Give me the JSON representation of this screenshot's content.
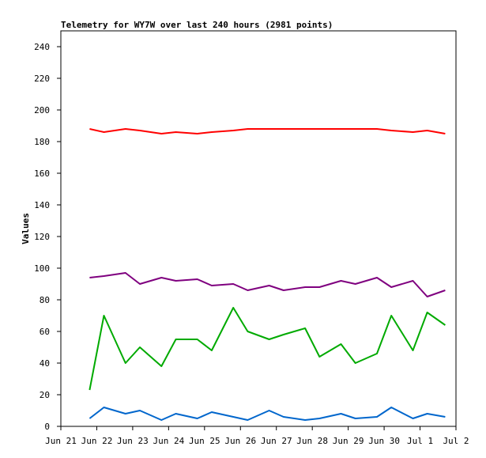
{
  "chart_data": {
    "type": "line",
    "title": "Telemetry for WY7W over last 240 hours (2981 points)",
    "xlabel": "",
    "ylabel": "Values",
    "xlim": [
      "Jun 21",
      "Jul 2"
    ],
    "ylim": [
      0,
      250
    ],
    "grid": false,
    "x_ticks": [
      "Jun 21",
      "Jun 22",
      "Jun 23",
      "Jun 24",
      "Jun 25",
      "Jun 26",
      "Jun 27",
      "Jun 28",
      "Jun 29",
      "Jun 30",
      "Jul 1",
      "Jul 2"
    ],
    "y_ticks": [
      0,
      20,
      40,
      60,
      80,
      100,
      120,
      140,
      160,
      180,
      200,
      220,
      240
    ],
    "x_day_offsets": [
      0.8,
      1.2,
      1.8,
      2.2,
      2.8,
      3.2,
      3.8,
      4.2,
      4.8,
      5.2,
      5.8,
      6.2,
      6.8,
      7.2,
      7.8,
      8.2,
      8.8,
      9.2,
      9.8,
      10.2,
      10.7
    ],
    "series": [
      {
        "color": "#ff0000",
        "values": [
          188,
          186,
          188,
          187,
          185,
          186,
          185,
          186,
          187,
          188,
          188,
          188,
          188,
          188,
          188,
          188,
          188,
          187,
          186,
          187,
          185
        ]
      },
      {
        "color": "#7f007f",
        "values": [
          94,
          95,
          97,
          90,
          94,
          92,
          93,
          89,
          90,
          86,
          89,
          86,
          88,
          88,
          92,
          90,
          94,
          88,
          92,
          82,
          86
        ]
      },
      {
        "color": "#00aa00",
        "values": [
          23,
          70,
          40,
          50,
          38,
          55,
          55,
          48,
          75,
          60,
          55,
          58,
          62,
          44,
          52,
          40,
          46,
          70,
          48,
          72,
          64
        ]
      },
      {
        "color": "#0066cc",
        "values": [
          5,
          12,
          8,
          10,
          4,
          8,
          5,
          9,
          6,
          4,
          10,
          6,
          4,
          5,
          8,
          5,
          6,
          12,
          5,
          8,
          6
        ]
      }
    ]
  }
}
